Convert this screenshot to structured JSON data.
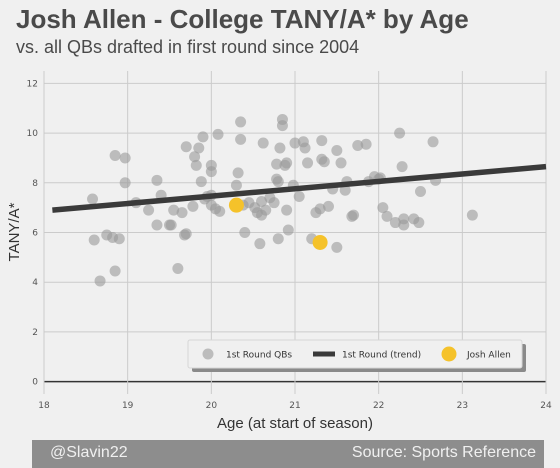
{
  "header": {
    "title": "Josh Allen - College TANY/A* by Age",
    "subtitle": "vs. all QBs drafted in first round since 2004"
  },
  "footer": {
    "credit": "@Slavin22",
    "source": "Source: Sports Reference"
  },
  "colors": {
    "background": "#f0f0f0",
    "points": "#9a9a9a",
    "trend": "#3a3a3a",
    "highlight": "#f5c22a",
    "footer": "#8d8d8d"
  },
  "chart_data": {
    "type": "scatter",
    "title": "",
    "xlabel": "Age (at start of season)",
    "ylabel": "TANY/A*",
    "xlim": [
      18,
      24
    ],
    "ylim": [
      -0.5,
      12.5
    ],
    "xticks": [
      18,
      19,
      20,
      21,
      22,
      23,
      24
    ],
    "yticks": [
      0,
      2,
      4,
      6,
      8,
      10,
      12
    ],
    "grid": true,
    "legend_position": "bottom-right",
    "legend": [
      "1st Round QBs",
      "1st Round (trend)",
      "Josh Allen"
    ],
    "series": [
      {
        "name": "1st Round QBs",
        "points": [
          [
            18.58,
            7.35
          ],
          [
            18.6,
            5.7
          ],
          [
            18.67,
            4.05
          ],
          [
            18.75,
            5.9
          ],
          [
            18.82,
            5.8
          ],
          [
            18.85,
            4.45
          ],
          [
            18.85,
            9.1
          ],
          [
            18.9,
            5.75
          ],
          [
            18.97,
            9.0
          ],
          [
            18.97,
            8.0
          ],
          [
            19.1,
            7.2
          ],
          [
            19.25,
            6.9
          ],
          [
            19.35,
            8.1
          ],
          [
            19.35,
            6.3
          ],
          [
            19.4,
            7.5
          ],
          [
            19.5,
            6.3
          ],
          [
            19.52,
            6.3
          ],
          [
            19.55,
            6.9
          ],
          [
            19.6,
            4.55
          ],
          [
            19.65,
            6.8
          ],
          [
            19.68,
            5.9
          ],
          [
            19.7,
            5.95
          ],
          [
            19.7,
            9.45
          ],
          [
            19.78,
            7.05
          ],
          [
            19.8,
            9.05
          ],
          [
            19.82,
            8.7
          ],
          [
            19.85,
            9.4
          ],
          [
            19.88,
            8.05
          ],
          [
            19.9,
            9.85
          ],
          [
            19.92,
            7.35
          ],
          [
            19.95,
            7.45
          ],
          [
            20.0,
            7.1
          ],
          [
            20.0,
            7.5
          ],
          [
            20.0,
            8.7
          ],
          [
            20.0,
            8.45
          ],
          [
            20.05,
            6.95
          ],
          [
            20.08,
            9.95
          ],
          [
            20.1,
            6.85
          ],
          [
            20.3,
            7.9
          ],
          [
            20.32,
            8.4
          ],
          [
            20.35,
            10.45
          ],
          [
            20.35,
            9.75
          ],
          [
            20.38,
            7.1
          ],
          [
            20.4,
            6.0
          ],
          [
            20.45,
            7.2
          ],
          [
            20.52,
            7.0
          ],
          [
            20.55,
            6.8
          ],
          [
            20.58,
            5.55
          ],
          [
            20.6,
            6.7
          ],
          [
            20.6,
            7.25
          ],
          [
            20.62,
            9.6
          ],
          [
            20.65,
            6.9
          ],
          [
            20.7,
            7.4
          ],
          [
            20.75,
            7.2
          ],
          [
            20.78,
            8.15
          ],
          [
            20.78,
            8.75
          ],
          [
            20.8,
            8.05
          ],
          [
            20.8,
            5.75
          ],
          [
            20.82,
            9.4
          ],
          [
            20.85,
            10.55
          ],
          [
            20.85,
            10.3
          ],
          [
            20.88,
            8.7
          ],
          [
            20.9,
            8.8
          ],
          [
            20.9,
            6.9
          ],
          [
            20.92,
            6.1
          ],
          [
            20.98,
            7.9
          ],
          [
            21.0,
            9.6
          ],
          [
            21.05,
            7.45
          ],
          [
            21.1,
            9.65
          ],
          [
            21.12,
            9.4
          ],
          [
            21.15,
            8.8
          ],
          [
            21.2,
            5.75
          ],
          [
            21.25,
            6.8
          ],
          [
            21.3,
            6.95
          ],
          [
            21.32,
            9.7
          ],
          [
            21.32,
            8.95
          ],
          [
            21.35,
            8.85
          ],
          [
            21.4,
            7.05
          ],
          [
            21.45,
            7.75
          ],
          [
            21.5,
            5.4
          ],
          [
            21.5,
            9.3
          ],
          [
            21.55,
            8.8
          ],
          [
            21.6,
            7.7
          ],
          [
            21.62,
            8.05
          ],
          [
            21.68,
            6.65
          ],
          [
            21.7,
            6.7
          ],
          [
            21.75,
            9.5
          ],
          [
            21.85,
            9.55
          ],
          [
            21.88,
            8.05
          ],
          [
            21.95,
            8.25
          ],
          [
            22.0,
            8.15
          ],
          [
            22.02,
            8.2
          ],
          [
            22.05,
            7.0
          ],
          [
            22.1,
            6.65
          ],
          [
            22.2,
            6.4
          ],
          [
            22.25,
            10.0
          ],
          [
            22.28,
            8.65
          ],
          [
            22.3,
            6.55
          ],
          [
            22.3,
            6.3
          ],
          [
            22.42,
            6.55
          ],
          [
            22.48,
            6.4
          ],
          [
            22.5,
            7.65
          ],
          [
            22.65,
            9.65
          ],
          [
            22.68,
            8.1
          ],
          [
            23.12,
            6.7
          ]
        ]
      },
      {
        "name": "1st Round (trend)",
        "points": [
          [
            18.1,
            6.9
          ],
          [
            24.0,
            8.65
          ]
        ]
      },
      {
        "name": "Josh Allen",
        "points": [
          [
            20.3,
            7.1
          ],
          [
            21.3,
            5.6
          ]
        ]
      }
    ]
  }
}
